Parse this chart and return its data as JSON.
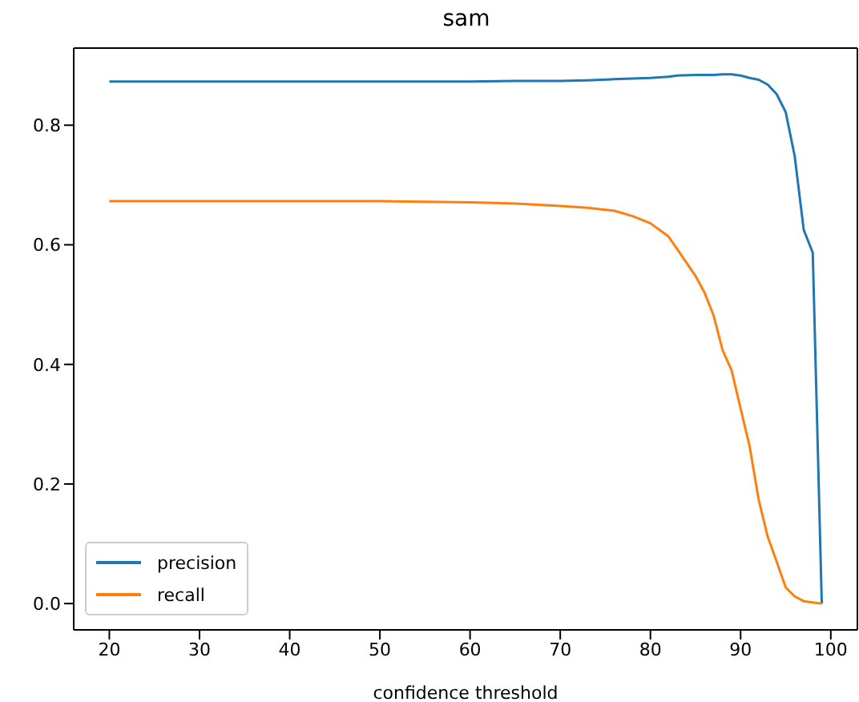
{
  "chart_data": {
    "type": "line",
    "title": "sam",
    "xlabel": "confidence threshold",
    "x": [
      20,
      30,
      40,
      50,
      55,
      60,
      65,
      70,
      73,
      76,
      78,
      80,
      82,
      83,
      85,
      86,
      87,
      88,
      89,
      90,
      91,
      92,
      93,
      94,
      95,
      96,
      97,
      98,
      99
    ],
    "series": [
      {
        "name": "precision",
        "color": "#1f77b4",
        "values": [
          0.873,
          0.873,
          0.873,
          0.873,
          0.873,
          0.873,
          0.874,
          0.874,
          0.875,
          0.877,
          0.878,
          0.879,
          0.881,
          0.883,
          0.884,
          0.884,
          0.884,
          0.885,
          0.885,
          0.883,
          0.879,
          0.876,
          0.868,
          0.852,
          0.822,
          0.748,
          0.625,
          0.587,
          0.0
        ]
      },
      {
        "name": "recall",
        "color": "#ff7f0e",
        "values": [
          0.673,
          0.673,
          0.673,
          0.673,
          0.672,
          0.671,
          0.669,
          0.665,
          0.662,
          0.657,
          0.648,
          0.636,
          0.614,
          0.592,
          0.548,
          0.52,
          0.482,
          0.424,
          0.39,
          0.326,
          0.263,
          0.174,
          0.112,
          0.07,
          0.027,
          0.012,
          0.004,
          0.002,
          0.0
        ]
      }
    ],
    "xlim": [
      16.05,
      102.95
    ],
    "xticks": [
      20,
      30,
      40,
      50,
      60,
      70,
      80,
      90,
      100
    ],
    "ylim": [
      -0.044,
      0.929
    ],
    "yticks": [
      {
        "value": 0,
        "label": "0.0"
      },
      {
        "value": 0.2,
        "label": "0.2"
      },
      {
        "value": 0.4,
        "label": "0.4"
      },
      {
        "value": 0.6,
        "label": "0.6"
      },
      {
        "value": 0.8,
        "label": "0.8"
      }
    ],
    "legend": "bottom left",
    "grid": false,
    "marker": "none",
    "line_style": "solid"
  }
}
